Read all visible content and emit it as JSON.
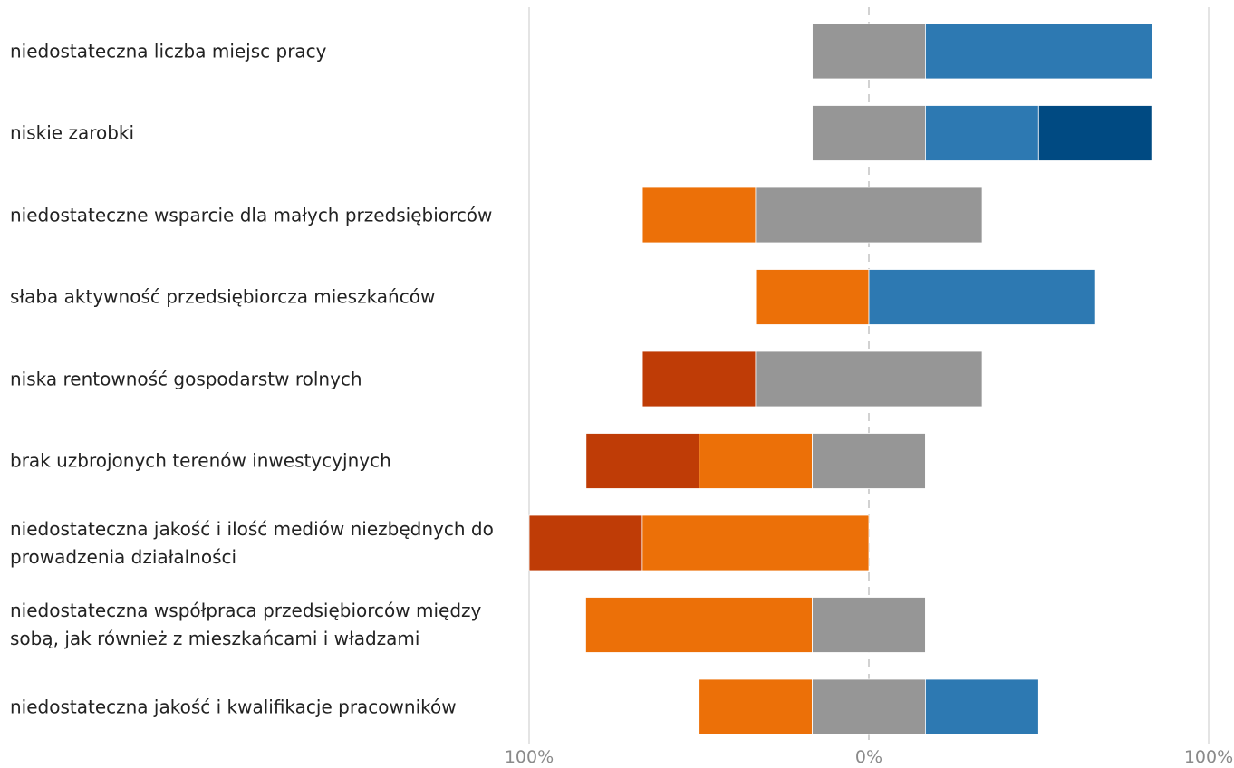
{
  "chart_data": {
    "type": "bar",
    "orientation": "horizontal-diverging",
    "categories": [
      "niedostateczna liczba miejsc pracy",
      "niskie zarobki",
      "niedostateczne wsparcie dla małych przedsiębiorców",
      "słaba aktywność przedsiębiorcza mieszkańców",
      "niska rentowność gospodarstw rolnych",
      "brak uzbrojonych terenów inwestycyjnych",
      "niedostateczna jakość i ilość mediów niezbędnych do prowadzenia działalności",
      "niedostateczna współpraca przedsiębiorców między sobą, jak również z mieszkańcami i władzami",
      "niedostateczna jakość i kwalifikacje pracowników"
    ],
    "series": [
      {
        "color": "#bf3c06",
        "values": [
          0,
          0,
          0,
          0,
          33.3,
          33.3,
          33.3,
          0,
          0
        ]
      },
      {
        "color": "#ec7008",
        "values": [
          0,
          0,
          33.3,
          33.3,
          0,
          33.3,
          66.7,
          66.7,
          33.3
        ]
      },
      {
        "color": "#969696",
        "values": [
          33.3,
          33.3,
          66.7,
          0,
          66.7,
          33.3,
          0,
          33.3,
          33.3
        ]
      },
      {
        "color": "#2d79b2",
        "values": [
          66.7,
          33.3,
          0,
          66.7,
          0,
          0,
          0,
          0,
          33.3
        ]
      },
      {
        "color": "#004a82",
        "values": [
          0,
          33.3,
          0,
          0,
          0,
          0,
          0,
          0,
          0
        ]
      }
    ],
    "xlim": [
      -100,
      100
    ],
    "x_tick_labels": [
      "100%",
      "0%",
      "100%"
    ],
    "grid": true,
    "legend": "none"
  }
}
